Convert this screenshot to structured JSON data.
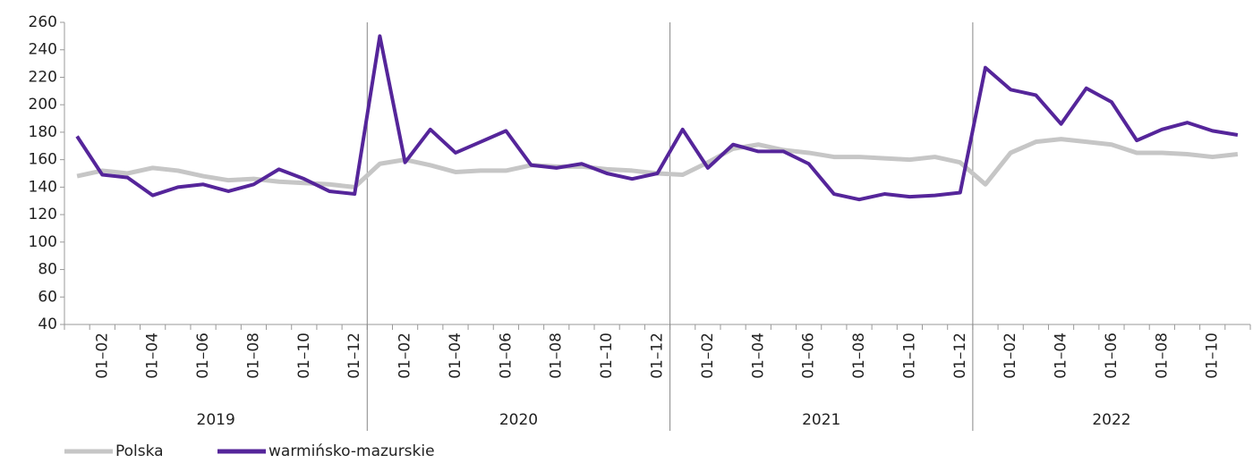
{
  "chart_data": {
    "type": "line",
    "groups": [
      {
        "label": "2019",
        "categories": [
          null,
          "01–02",
          null,
          "01–04",
          null,
          "01–06",
          null,
          "01–08",
          null,
          "01–10",
          null,
          "01–12"
        ]
      },
      {
        "label": "2020",
        "categories": [
          null,
          "01–02",
          null,
          "01–04",
          null,
          "01–06",
          null,
          "01–08",
          null,
          "01–10",
          null,
          "01–12"
        ]
      },
      {
        "label": "2021",
        "categories": [
          null,
          "01–02",
          null,
          "01–04",
          null,
          "01–06",
          null,
          "01–08",
          null,
          "01–10",
          null,
          "01–12"
        ]
      },
      {
        "label": "2022",
        "categories": [
          null,
          "01–02",
          null,
          "01–04",
          null,
          "01–06",
          null,
          "01–08",
          null,
          "01–10",
          null
        ]
      }
    ],
    "series": [
      {
        "name": "Polska",
        "color": "#c6c6c6",
        "values": [
          148,
          152,
          150,
          154,
          152,
          148,
          145,
          146,
          144,
          143,
          142,
          140,
          157,
          160,
          156,
          151,
          152,
          152,
          156,
          155,
          155,
          153,
          152,
          150,
          149,
          158,
          168,
          171,
          167,
          165,
          162,
          162,
          161,
          160,
          162,
          158,
          142,
          165,
          173,
          175,
          173,
          171,
          165,
          165,
          164,
          162,
          164
        ]
      },
      {
        "name": "warmińsko-mazurskie",
        "color": "#55259a",
        "values": [
          177,
          149,
          147,
          134,
          140,
          142,
          137,
          142,
          153,
          146,
          137,
          135,
          250,
          158,
          182,
          165,
          173,
          181,
          156,
          154,
          157,
          150,
          146,
          150,
          182,
          154,
          171,
          166,
          166,
          157,
          135,
          131,
          135,
          133,
          134,
          136,
          227,
          211,
          207,
          186,
          212,
          202,
          174,
          182,
          187,
          181,
          178
        ]
      }
    ],
    "ylim": [
      40,
      260
    ],
    "yticks": [
      40,
      60,
      80,
      100,
      120,
      140,
      160,
      180,
      200,
      220,
      240,
      260
    ]
  }
}
